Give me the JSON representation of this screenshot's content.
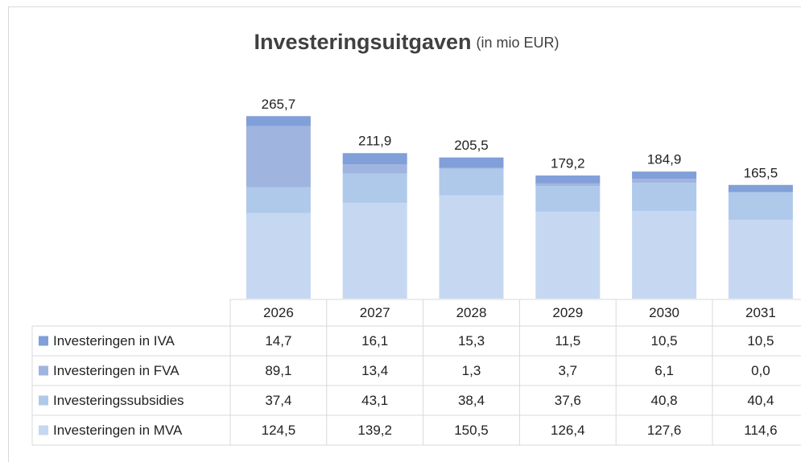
{
  "chart_data": {
    "type": "stacked_bar_table",
    "title": "Investeringsuitgaven",
    "subtitle": "(in mio EUR)",
    "categories": [
      "2026",
      "2027",
      "2028",
      "2029",
      "2030",
      "2031"
    ],
    "ylim": [
      0,
      300
    ],
    "series": [
      {
        "name": "Investeringen in IVA",
        "color": "#819fd8",
        "values": [
          14.7,
          16.1,
          15.3,
          11.5,
          10.5,
          10.5
        ],
        "value_labels": [
          "14,7",
          "16,1",
          "15,3",
          "11,5",
          "10,5",
          "10,5"
        ]
      },
      {
        "name": "Investeringen in FVA",
        "color": "#a0b4e0",
        "values": [
          89.1,
          13.4,
          1.3,
          3.7,
          6.1,
          0.0
        ],
        "value_labels": [
          "89,1",
          "13,4",
          "1,3",
          "3,7",
          "6,1",
          "0,0"
        ]
      },
      {
        "name": "Investeringssubsidies",
        "color": "#afc9eb",
        "values": [
          37.4,
          43.1,
          38.4,
          37.6,
          40.8,
          40.4
        ],
        "value_labels": [
          "37,4",
          "43,1",
          "38,4",
          "37,6",
          "40,8",
          "40,4"
        ]
      },
      {
        "name": "Investeringen in MVA",
        "color": "#c6d8f1",
        "values": [
          124.5,
          139.2,
          150.5,
          126.4,
          127.6,
          114.6
        ],
        "value_labels": [
          "124,5",
          "139,2",
          "150,5",
          "126,4",
          "127,6",
          "114,6"
        ]
      }
    ],
    "totals": [
      265.7,
      211.9,
      205.5,
      179.2,
      184.9,
      165.5
    ],
    "total_labels": [
      "265,7",
      "211,9",
      "205,5",
      "179,2",
      "184,9",
      "165,5"
    ]
  }
}
